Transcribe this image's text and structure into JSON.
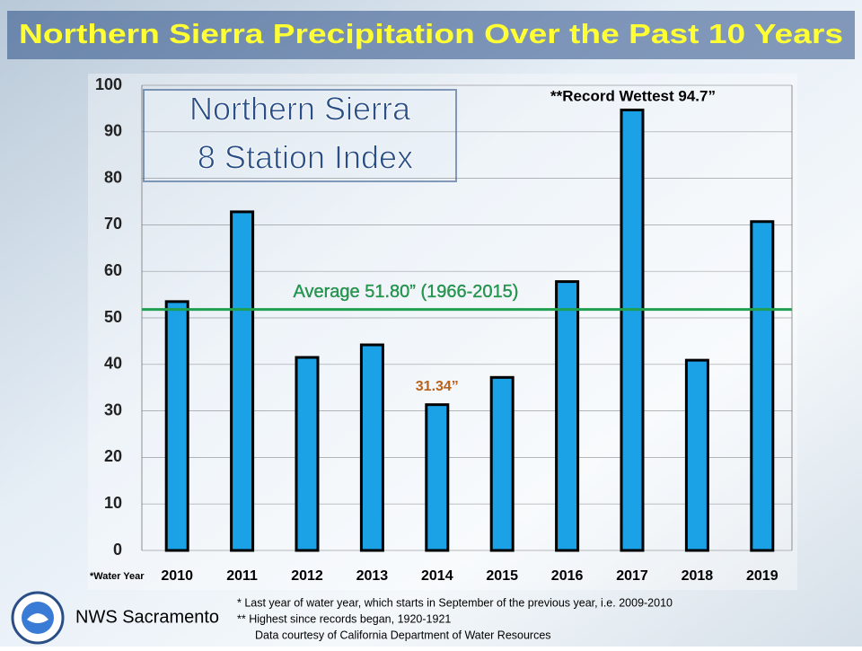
{
  "chart_data": {
    "type": "bar",
    "title": "Northern Sierra  Precipitation Over the Past 10 Years",
    "subtitle": [
      "Northern Sierra",
      "8 Station Index"
    ],
    "x_note": "*Water Year",
    "categories": [
      "2010",
      "2011",
      "2012",
      "2013",
      "2014",
      "2015",
      "2016",
      "2017",
      "2018",
      "2019"
    ],
    "values": [
      53.5,
      72.8,
      41.5,
      44.2,
      31.34,
      37.2,
      57.8,
      94.7,
      40.9,
      70.7
    ],
    "value_labels": [
      null,
      null,
      null,
      null,
      "31.34”",
      null,
      null,
      null,
      null,
      null
    ],
    "color": "#1ba1e6",
    "ylim": [
      0,
      100
    ],
    "yticks": [
      0,
      10,
      20,
      30,
      40,
      50,
      60,
      70,
      80,
      90,
      100
    ],
    "grid": true,
    "annotations": [
      "**Record Wettest 94.7”"
    ],
    "average": {
      "value": 51.8,
      "label": "Average 51.80” (1966-2015)",
      "color": "#1fa050"
    },
    "footnotes": [
      "*   Last year of water year, which starts in September of the previous year, i.e. 2009-2010",
      "** Highest since records began, 1920-1921",
      "Data courtesy of California Department of Water Resources"
    ],
    "source": "NWS Sacramento"
  }
}
